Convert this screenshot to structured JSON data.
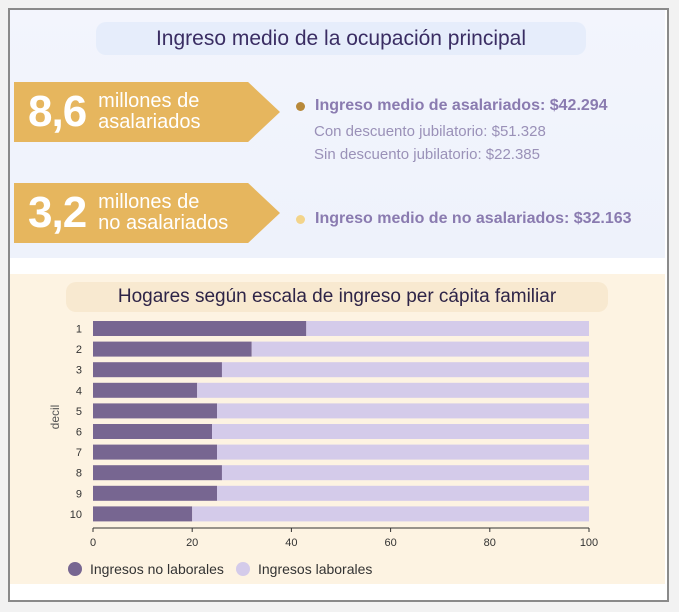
{
  "header": {
    "title": "Ingreso medio de la ocupación principal"
  },
  "stats": [
    {
      "number": "8,6",
      "label_line1": "millones de",
      "label_line2": "asalariados",
      "headline": "Ingreso medio de asalariados: $42.294",
      "dot_color": "#b8893a",
      "details": [
        "Con descuento jubilatorio: $51.328",
        "Sin descuento jubilatorio: $22.385"
      ]
    },
    {
      "number": "3,2",
      "label_line1": "millones de",
      "label_line2": "no asalariados",
      "headline": "Ingreso medio de no asalariados: $32.163",
      "dot_color": "#f3d48a",
      "details": []
    }
  ],
  "colors": {
    "badge": "#e6b65e",
    "no_laborales": "#776691",
    "laborales": "#d4cbea"
  },
  "chart_data": {
    "type": "bar",
    "orientation": "horizontal",
    "stacked": true,
    "title": "Hogares según escala de ingreso per cápita familiar",
    "ylabel": "decil",
    "xlabel": "",
    "categories": [
      "1",
      "2",
      "3",
      "4",
      "5",
      "6",
      "7",
      "8",
      "9",
      "10"
    ],
    "series": [
      {
        "name": "Ingresos no laborales",
        "values": [
          43,
          32,
          26,
          21,
          25,
          24,
          25,
          26,
          25,
          20
        ]
      },
      {
        "name": "Ingresos laborales",
        "values": [
          57,
          68,
          74,
          79,
          75,
          76,
          75,
          74,
          75,
          80
        ]
      }
    ],
    "xlim": [
      0,
      100
    ],
    "xticks": [
      "0",
      "20",
      "40",
      "60",
      "80",
      "100"
    ],
    "legend_position": "bottom-left",
    "grid": false
  }
}
